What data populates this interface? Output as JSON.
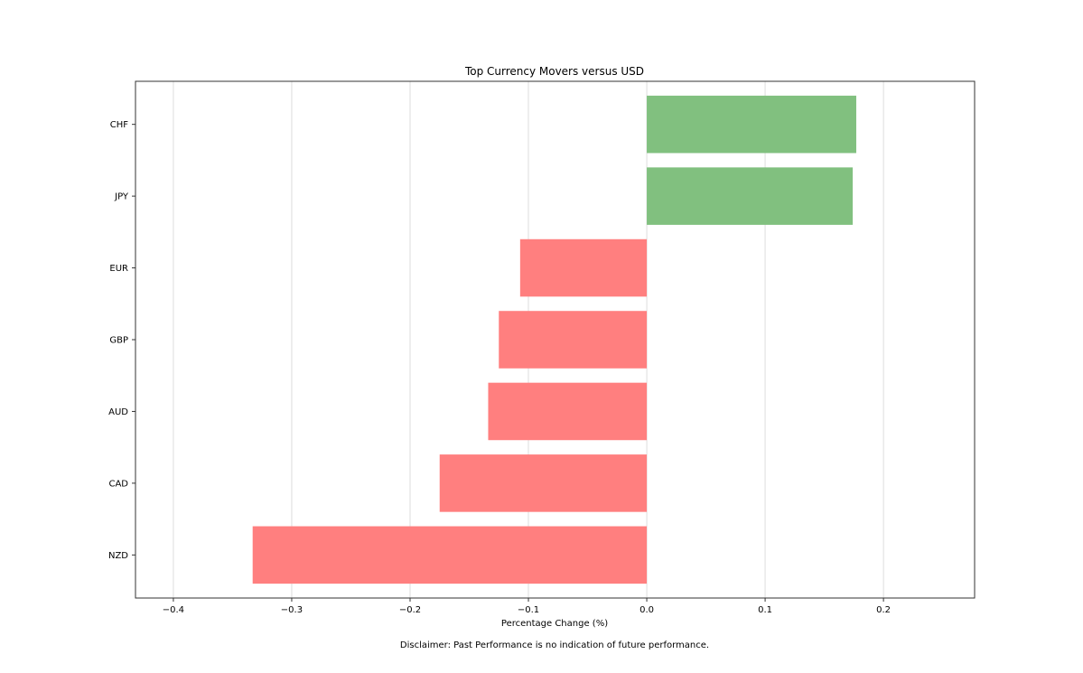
{
  "chart_data": {
    "type": "bar",
    "orientation": "horizontal",
    "title": "Top Currency Movers versus USD",
    "xlabel": "Percentage Change (%)",
    "ylabel": "",
    "categories": [
      "CHF",
      "JPY",
      "EUR",
      "GBP",
      "AUD",
      "CAD",
      "NZD"
    ],
    "values": [
      0.177,
      0.174,
      -0.107,
      -0.125,
      -0.134,
      -0.175,
      -0.333
    ],
    "xlim": [
      -0.432,
      0.277
    ],
    "xticks": [
      -0.4,
      -0.3,
      -0.2,
      -0.1,
      0.0,
      0.1,
      0.2
    ],
    "xtick_labels": [
      "−0.4",
      "−0.3",
      "−0.2",
      "−0.1",
      "0.0",
      "0.1",
      "0.2"
    ],
    "grid": "vertical",
    "colors": {
      "positive": "#81c07f",
      "negative": "#ff7f7f",
      "frame": "#333333",
      "grid": "#dddddd"
    }
  },
  "footer": {
    "disclaimer": "Disclaimer: Past Performance is no indication of future performance."
  }
}
